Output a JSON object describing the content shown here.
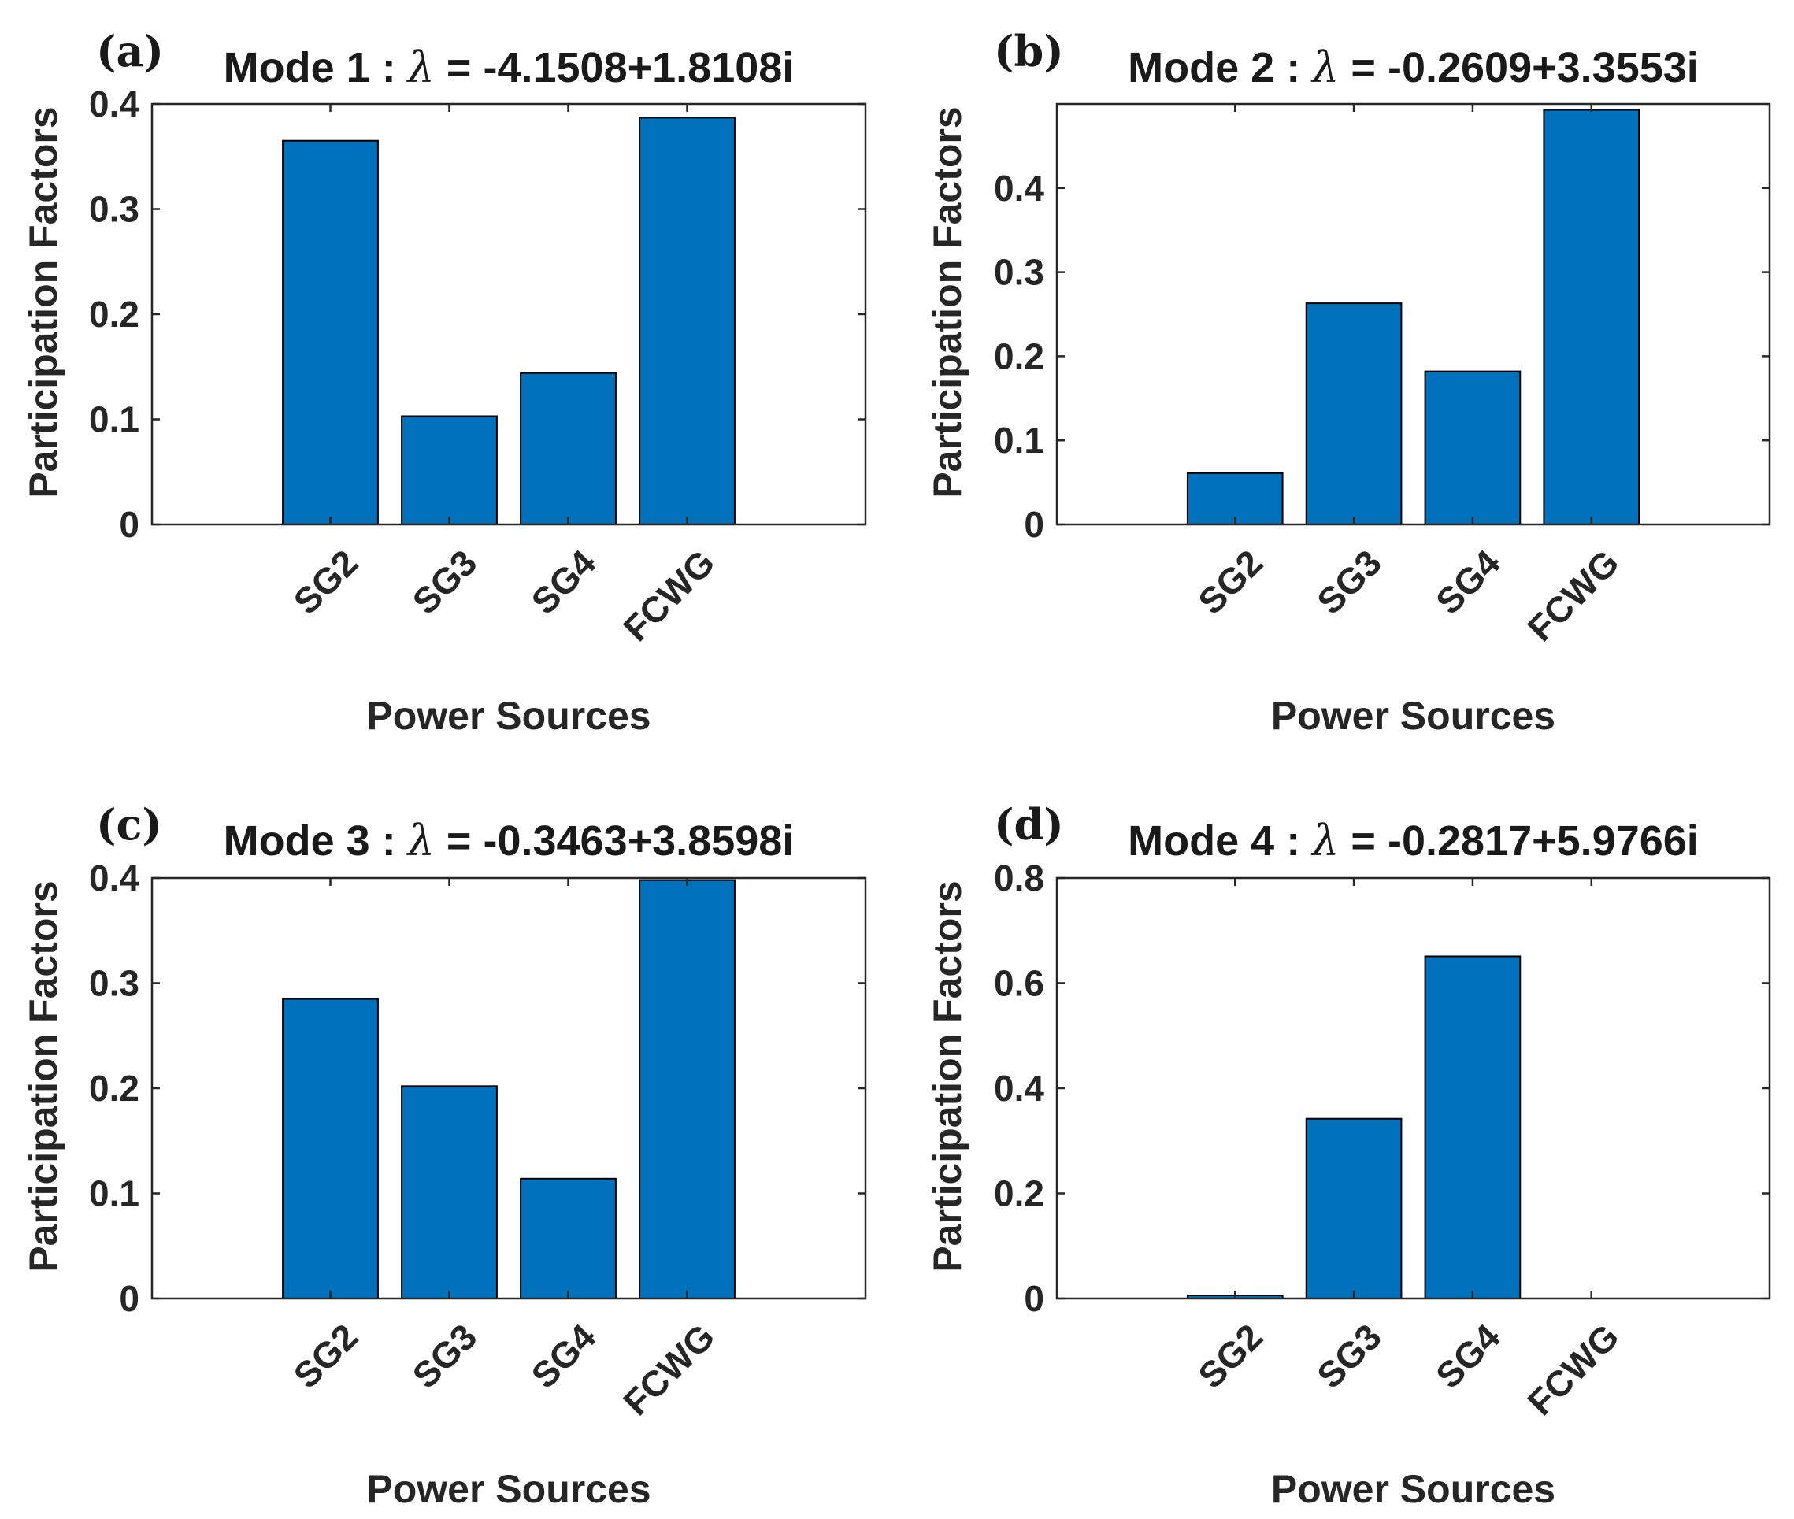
{
  "chart_data": [
    {
      "type": "bar",
      "panel": "(a)",
      "title_prefix": "Mode 1 : ",
      "lambda_symbol": "λ",
      "title_suffix": " = -4.1508+1.8108i",
      "xlabel": "Power Sources",
      "ylabel": "Participation Factors",
      "categories": [
        "SG2",
        "SG3",
        "SG4",
        "FCWG"
      ],
      "values": [
        0.365,
        0.103,
        0.144,
        0.387
      ],
      "ylim": [
        0,
        0.4
      ],
      "yticks": [
        0,
        0.1,
        0.2,
        0.3,
        0.4
      ],
      "ytick_labels": [
        "0",
        "0.1",
        "0.2",
        "0.3",
        "0.4"
      ],
      "bar_color": "#0072bd"
    },
    {
      "type": "bar",
      "panel": "(b)",
      "title_prefix": "Mode 2 : ",
      "lambda_symbol": "λ",
      "title_suffix": " = -0.2609+3.3553i",
      "xlabel": "Power Sources",
      "ylabel": "Participation Factors",
      "categories": [
        "SG2",
        "SG3",
        "SG4",
        "FCWG"
      ],
      "values": [
        0.061,
        0.263,
        0.182,
        0.493
      ],
      "ylim": [
        0,
        0.5
      ],
      "yticks": [
        0,
        0.1,
        0.2,
        0.3,
        0.4
      ],
      "ytick_labels": [
        "0",
        "0.1",
        "0.2",
        "0.3",
        "0.4"
      ],
      "bar_color": "#0072bd"
    },
    {
      "type": "bar",
      "panel": "(c)",
      "title_prefix": "Mode 3 : ",
      "lambda_symbol": "λ",
      "title_suffix": " = -0.3463+3.8598i",
      "xlabel": "Power Sources",
      "ylabel": "Participation Factors",
      "categories": [
        "SG2",
        "SG3",
        "SG4",
        "FCWG"
      ],
      "values": [
        0.285,
        0.202,
        0.114,
        0.398
      ],
      "ylim": [
        0,
        0.4
      ],
      "yticks": [
        0,
        0.1,
        0.2,
        0.3,
        0.4
      ],
      "ytick_labels": [
        "0",
        "0.1",
        "0.2",
        "0.3",
        "0.4"
      ],
      "bar_color": "#0072bd"
    },
    {
      "type": "bar",
      "panel": "(d)",
      "title_prefix": "Mode 4 : ",
      "lambda_symbol": "λ",
      "title_suffix": " = -0.2817+5.9766i",
      "xlabel": "Power Sources",
      "ylabel": "Participation Factors",
      "categories": [
        "SG2",
        "SG3",
        "SG4",
        "FCWG"
      ],
      "values": [
        0.006,
        0.342,
        0.651,
        0.0
      ],
      "ylim": [
        0,
        0.8
      ],
      "yticks": [
        0,
        0.2,
        0.4,
        0.6,
        0.8
      ],
      "ytick_labels": [
        "0",
        "0.2",
        "0.4",
        "0.6",
        "0.8"
      ],
      "bar_color": "#0072bd"
    }
  ]
}
